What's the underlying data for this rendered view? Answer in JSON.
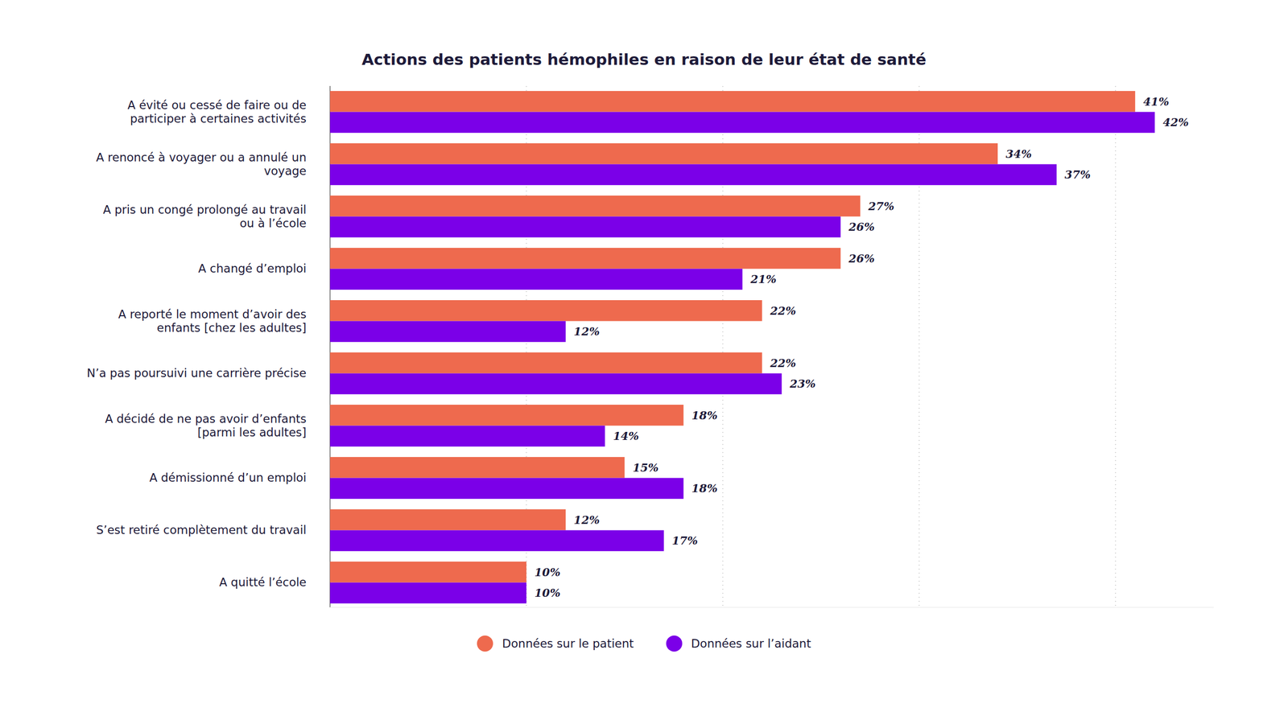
{
  "chart_data": {
    "type": "bar",
    "orientation": "horizontal",
    "title": "Actions des patients hémophiles en raison de leur état de santé",
    "categories": [
      "A évité ou cessé de faire ou de participer à certaines activités",
      "A renoncé à voyager ou a annulé un voyage",
      "A pris un congé prolongé au travail ou à l’école",
      "A changé d’emploi",
      "A reporté le moment d’avoir des enfants [chez les adultes]",
      "N’a pas poursuivi une carrière précise",
      "A décidé de ne pas avoir d’enfants [parmi les adultes]",
      "A démissionné d’un emploi",
      "S’est retiré complètement du travail",
      "A quitté l’école"
    ],
    "series": [
      {
        "name": "Données sur le patient",
        "color": "#ee6a4e",
        "values": [
          41,
          34,
          27,
          26,
          22,
          22,
          18,
          15,
          12,
          10
        ],
        "value_labels": [
          "41%",
          "34%",
          "27%",
          "26%",
          "22%",
          "22%",
          "18%",
          "15%",
          "12%",
          "10%"
        ]
      },
      {
        "name": "Données sur l’aidant",
        "color": "#7b00e8",
        "values": [
          42,
          37,
          26,
          21,
          12,
          23,
          14,
          18,
          17,
          10
        ],
        "value_labels": [
          "42%",
          "37%",
          "26%",
          "21%",
          "12%",
          "23%",
          "14%",
          "18%",
          "17%",
          "10%"
        ]
      }
    ],
    "xlim": [
      0,
      45
    ],
    "xticks": [
      0,
      10,
      20,
      30,
      40
    ],
    "grid": true,
    "tick_labels": false,
    "data_labels": true,
    "legend": "bottom"
  }
}
